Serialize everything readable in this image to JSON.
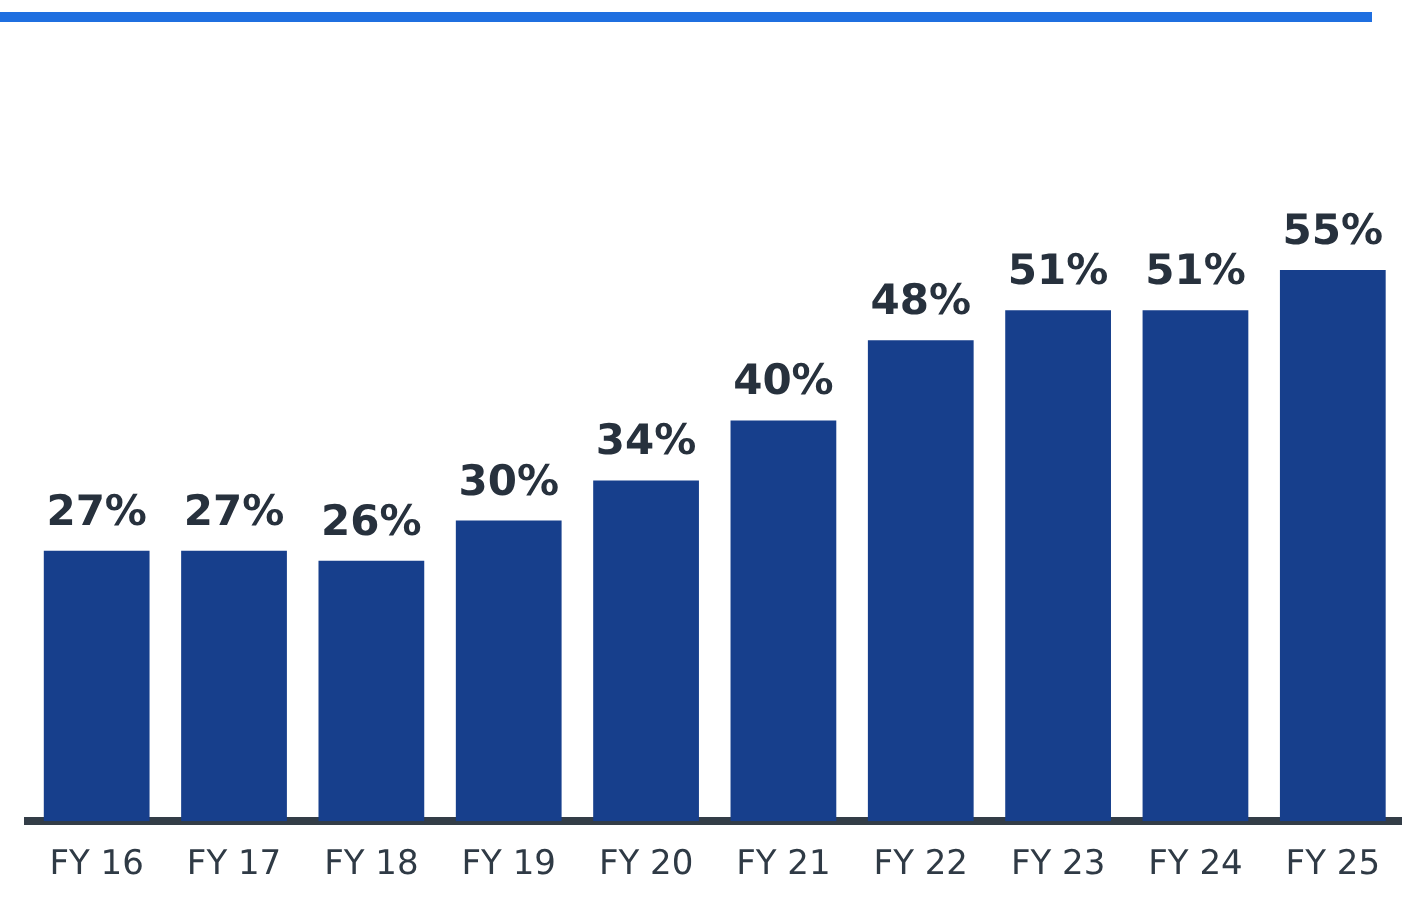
{
  "chart_data": {
    "type": "bar",
    "categories": [
      "FY 16",
      "FY 17",
      "FY 18",
      "FY 19",
      "FY 20",
      "FY 21",
      "FY 22",
      "FY 23",
      "FY 24",
      "FY 25"
    ],
    "values": [
      27,
      27,
      26,
      30,
      34,
      40,
      48,
      51,
      51,
      55
    ],
    "value_labels": [
      "27%",
      "27%",
      "26%",
      "30%",
      "34%",
      "40%",
      "48%",
      "51%",
      "51%",
      "55%"
    ],
    "color": "#173f8c",
    "grid": false,
    "legend": false,
    "tick_labels": "x"
  }
}
